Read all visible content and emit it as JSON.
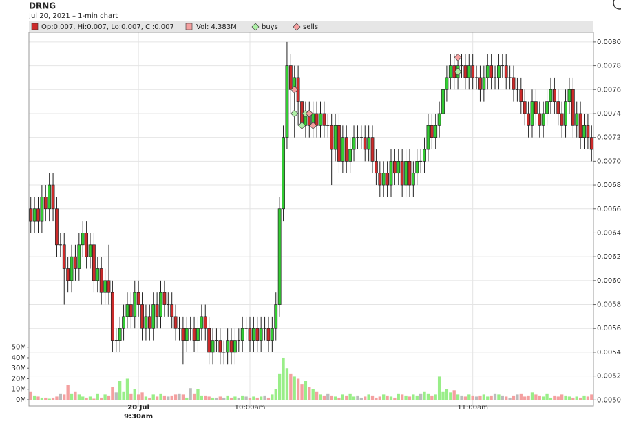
{
  "chart_data": {
    "type": "candlestick",
    "title": "DRNG",
    "subtitle": "Jul 20, 2021 – 1-min chart",
    "legend": {
      "ohlc": "Op:0.007, Hi:0.007, Lo:0.007, Cl:0.007",
      "volume": "Vol: 4.383M"
    },
    "up_color": "#33cc33",
    "down_color": "#cc2b2b",
    "volume_up_color": "#99ee88",
    "volume_down_color": "#f4a0a0",
    "volume_flat_color": "#bbbbbb",
    "date_label": "20 Jul",
    "categories": [
      null,
      null,
      null,
      null,
      null,
      null,
      null,
      null,
      null,
      null,
      null,
      null,
      null,
      null,
      null,
      null,
      null,
      null,
      null,
      null,
      null,
      null,
      null,
      null,
      null,
      null,
      null,
      null,
      null,
      "9:30am",
      null,
      null,
      null,
      null,
      null,
      null,
      null,
      null,
      null,
      null,
      null,
      null,
      null,
      null,
      null,
      null,
      null,
      null,
      null,
      null,
      null,
      null,
      null,
      null,
      null,
      null,
      null,
      null,
      null,
      "10:00am",
      null,
      null,
      null,
      null,
      null,
      null,
      null,
      null,
      null,
      null,
      null,
      null,
      null,
      null,
      null,
      null,
      null,
      null,
      null,
      null,
      null,
      null,
      null,
      null,
      null,
      null,
      null,
      null,
      null,
      null,
      null,
      null,
      null,
      null,
      null,
      null,
      null,
      null,
      null,
      null,
      null,
      null,
      null,
      null,
      null,
      null,
      null,
      null,
      null,
      null,
      null,
      null,
      null,
      null,
      null,
      null,
      null,
      null,
      null,
      "11:00am",
      null,
      null,
      null,
      null,
      null,
      null,
      null,
      null,
      null,
      null,
      null,
      null,
      null,
      null,
      null,
      null,
      null,
      null,
      null,
      null,
      null,
      null,
      null,
      null,
      null,
      null,
      null,
      null,
      null,
      null,
      null,
      null
    ],
    "open": [
      0.0066,
      0.0065,
      0.0066,
      0.0065,
      0.0067,
      0.0066,
      0.0068,
      0.0066,
      0.0063,
      0.0063,
      0.0061,
      0.006,
      0.0062,
      0.0061,
      0.0063,
      0.0064,
      0.0062,
      0.0063,
      0.006,
      0.0061,
      0.0059,
      0.006,
      0.0059,
      0.0055,
      0.0055,
      0.0056,
      0.0057,
      0.0058,
      0.0057,
      0.0059,
      0.0058,
      0.0056,
      0.0057,
      0.0056,
      0.0058,
      0.0057,
      0.0059,
      0.0058,
      0.0058,
      0.0057,
      0.0056,
      0.0056,
      0.0055,
      0.0056,
      0.0056,
      0.0055,
      0.0056,
      0.0057,
      0.0056,
      0.0054,
      0.0055,
      0.0055,
      0.0054,
      0.0054,
      0.0055,
      0.0054,
      0.0055,
      0.0055,
      0.0056,
      0.0056,
      0.0055,
      0.0056,
      0.0055,
      0.0056,
      0.0056,
      0.0055,
      0.0056,
      0.0058,
      0.0066,
      0.0072,
      0.0078,
      0.0076,
      0.0077,
      0.0075,
      0.0073,
      0.0074,
      0.0073,
      0.0074,
      0.0073,
      0.0074,
      0.0073,
      0.0073,
      0.0071,
      0.0073,
      0.007,
      0.0072,
      0.007,
      0.0071,
      0.0072,
      0.0072,
      0.0072,
      0.0071,
      0.0072,
      0.007,
      0.0069,
      0.0068,
      0.0069,
      0.0068,
      0.007,
      0.0069,
      0.007,
      0.0068,
      0.007,
      0.0068,
      0.0069,
      0.007,
      0.007,
      0.0071,
      0.0073,
      0.0072,
      0.0073,
      0.0074,
      0.0076,
      0.0077,
      0.0078,
      0.0077,
      0.0078,
      0.0078,
      0.0077,
      0.0078,
      0.0077,
      0.0077,
      0.0076,
      0.0077,
      0.0078,
      0.0077,
      0.0077,
      0.0078,
      0.0078,
      0.0077,
      0.0077,
      0.0076,
      0.0076,
      0.0075,
      0.0074,
      0.0073,
      0.0075,
      0.0074,
      0.0073,
      0.0074,
      0.0075,
      0.0076,
      0.0075,
      0.0074,
      0.0073,
      0.0075,
      0.0076,
      0.0073,
      0.0074,
      0.0072,
      0.0073,
      0.0072
    ],
    "high": [
      0.0067,
      0.0067,
      0.0067,
      0.0068,
      0.0068,
      0.0069,
      0.0069,
      0.0067,
      0.0064,
      0.0064,
      0.0062,
      0.0063,
      0.0063,
      0.0064,
      0.0065,
      0.0065,
      0.0064,
      0.0064,
      0.0062,
      0.0062,
      0.0061,
      0.0063,
      0.006,
      0.0056,
      0.0057,
      0.0058,
      0.0059,
      0.0059,
      0.006,
      0.006,
      0.0059,
      0.0058,
      0.0058,
      0.0059,
      0.0059,
      0.006,
      0.006,
      0.0059,
      0.0059,
      0.0058,
      0.0057,
      0.0057,
      0.0057,
      0.0057,
      0.0057,
      0.0057,
      0.0058,
      0.0058,
      0.0057,
      0.0056,
      0.0056,
      0.0056,
      0.0055,
      0.0056,
      0.0056,
      0.0056,
      0.0056,
      0.0057,
      0.0057,
      0.0057,
      0.0057,
      0.0057,
      0.0057,
      0.0057,
      0.0057,
      0.0057,
      0.0059,
      0.0067,
      0.0073,
      0.008,
      0.0079,
      0.0078,
      0.0078,
      0.0076,
      0.0075,
      0.0075,
      0.0075,
      0.0075,
      0.0075,
      0.0075,
      0.0074,
      0.0074,
      0.0074,
      0.0074,
      0.0073,
      0.0073,
      0.0072,
      0.0073,
      0.0073,
      0.0073,
      0.0073,
      0.0073,
      0.0073,
      0.0071,
      0.007,
      0.007,
      0.007,
      0.0071,
      0.0071,
      0.0071,
      0.0071,
      0.0071,
      0.0071,
      0.007,
      0.0071,
      0.0071,
      0.0072,
      0.0074,
      0.0074,
      0.0074,
      0.0075,
      0.0077,
      0.0078,
      0.0079,
      0.0079,
      0.0079,
      0.0079,
      0.0079,
      0.0079,
      0.0079,
      0.0078,
      0.0078,
      0.0078,
      0.0079,
      0.0079,
      0.0078,
      0.0079,
      0.0079,
      0.0079,
      0.0078,
      0.0078,
      0.0077,
      0.0077,
      0.0076,
      0.0075,
      0.0076,
      0.0076,
      0.0075,
      0.0075,
      0.0076,
      0.0077,
      0.0077,
      0.0076,
      0.0075,
      0.0076,
      0.0077,
      0.0077,
      0.0075,
      0.0075,
      0.0074,
      0.0074,
      0.0073
    ],
    "low": [
      0.0064,
      0.0064,
      0.0064,
      0.0064,
      0.0065,
      0.0065,
      0.0065,
      0.0062,
      0.0062,
      0.0058,
      0.0059,
      0.0059,
      0.006,
      0.006,
      0.0062,
      0.0061,
      0.0061,
      0.0059,
      0.0059,
      0.0058,
      0.0058,
      0.0058,
      0.0054,
      0.0054,
      0.0054,
      0.0055,
      0.0056,
      0.0056,
      0.0056,
      0.0057,
      0.0055,
      0.0055,
      0.0055,
      0.0055,
      0.0056,
      0.0056,
      0.0057,
      0.0057,
      0.0056,
      0.0055,
      0.0055,
      0.0053,
      0.0054,
      0.0055,
      0.0054,
      0.0054,
      0.0055,
      0.0055,
      0.0053,
      0.0053,
      0.0054,
      0.0053,
      0.0053,
      0.0053,
      0.0053,
      0.0053,
      0.0054,
      0.0054,
      0.0055,
      0.0054,
      0.0054,
      0.0054,
      0.0054,
      0.0055,
      0.0054,
      0.0054,
      0.0055,
      0.0057,
      0.0065,
      0.0071,
      0.0074,
      0.0072,
      0.0073,
      0.0071,
      0.0072,
      0.0072,
      0.0072,
      0.0072,
      0.0072,
      0.0072,
      0.0072,
      0.0068,
      0.007,
      0.0069,
      0.0069,
      0.0069,
      0.0069,
      0.007,
      0.0071,
      0.0071,
      0.007,
      0.007,
      0.0069,
      0.0068,
      0.0067,
      0.0067,
      0.0067,
      0.0067,
      0.0068,
      0.0068,
      0.0067,
      0.0067,
      0.0067,
      0.0067,
      0.0068,
      0.0069,
      0.0069,
      0.007,
      0.0071,
      0.0071,
      0.0072,
      0.0073,
      0.0075,
      0.0076,
      0.0076,
      0.0076,
      0.0077,
      0.0076,
      0.0076,
      0.0076,
      0.0076,
      0.0075,
      0.0075,
      0.0076,
      0.0076,
      0.0076,
      0.0076,
      0.0077,
      0.0076,
      0.0076,
      0.0075,
      0.0075,
      0.0074,
      0.0073,
      0.0072,
      0.0072,
      0.0073,
      0.0072,
      0.0072,
      0.0073,
      0.0074,
      0.0074,
      0.0073,
      0.0072,
      0.0072,
      0.0074,
      0.0072,
      0.0072,
      0.0071,
      0.0071,
      0.0071,
      0.007
    ],
    "close": [
      0.0065,
      0.0066,
      0.0065,
      0.0067,
      0.0066,
      0.0068,
      0.0066,
      0.0063,
      0.0063,
      0.0061,
      0.006,
      0.0062,
      0.0061,
      0.0063,
      0.0064,
      0.0062,
      0.0063,
      0.006,
      0.0061,
      0.0059,
      0.006,
      0.0059,
      0.0055,
      0.0055,
      0.0056,
      0.0057,
      0.0058,
      0.0057,
      0.0059,
      0.0058,
      0.0056,
      0.0057,
      0.0056,
      0.0058,
      0.0057,
      0.0059,
      0.0058,
      0.0058,
      0.0057,
      0.0056,
      0.0056,
      0.0055,
      0.0056,
      0.0056,
      0.0055,
      0.0056,
      0.0057,
      0.0056,
      0.0054,
      0.0055,
      0.0055,
      0.0054,
      0.0054,
      0.0055,
      0.0054,
      0.0055,
      0.0055,
      0.0056,
      0.0056,
      0.0055,
      0.0056,
      0.0055,
      0.0056,
      0.0056,
      0.0055,
      0.0056,
      0.0058,
      0.0066,
      0.0072,
      0.0078,
      0.0076,
      0.0077,
      0.0075,
      0.0073,
      0.0074,
      0.0073,
      0.0074,
      0.0073,
      0.0074,
      0.0073,
      0.0073,
      0.0071,
      0.0073,
      0.007,
      0.0072,
      0.007,
      0.0071,
      0.0072,
      0.0072,
      0.0072,
      0.0071,
      0.0072,
      0.007,
      0.0069,
      0.0068,
      0.0069,
      0.0068,
      0.007,
      0.0069,
      0.007,
      0.0068,
      0.007,
      0.0068,
      0.0069,
      0.007,
      0.007,
      0.0071,
      0.0073,
      0.0072,
      0.0073,
      0.0074,
      0.0076,
      0.0077,
      0.0078,
      0.0077,
      0.0078,
      0.0078,
      0.0077,
      0.0078,
      0.0077,
      0.0077,
      0.0076,
      0.0077,
      0.0078,
      0.0077,
      0.0077,
      0.0078,
      0.0078,
      0.0077,
      0.0077,
      0.0076,
      0.0076,
      0.0075,
      0.0074,
      0.0073,
      0.0075,
      0.0074,
      0.0073,
      0.0074,
      0.0075,
      0.0076,
      0.0075,
      0.0074,
      0.0073,
      0.0075,
      0.0076,
      0.0073,
      0.0074,
      0.0072,
      0.0073,
      0.0072,
      0.0071
    ],
    "volume": [
      8000000.0,
      4000000.0,
      3000000.0,
      2000000.0,
      2000000.0,
      1000000.0,
      2000000.0,
      3000000.0,
      6000000.0,
      5000000.0,
      14000000.0,
      6000000.0,
      8000000.0,
      5000000.0,
      3000000.0,
      2000000.0,
      3000000.0,
      1000000.0,
      6000000.0,
      2000000.0,
      5000000.0,
      4000000.0,
      12000000.0,
      7000000.0,
      18000000.0,
      8000000.0,
      20000000.0,
      6000000.0,
      10000000.0,
      5000000.0,
      7000000.0,
      3000000.0,
      2000000.0,
      5000000.0,
      3000000.0,
      6000000.0,
      4000000.0,
      3000000.0,
      4000000.0,
      5000000.0,
      6000000.0,
      5000000.0,
      2000000.0,
      11000000.0,
      6000000.0,
      10000000.0,
      4000000.0,
      4000000.0,
      3000000.0,
      2000000.0,
      2000000.0,
      3000000.0,
      2000000.0,
      4000000.0,
      2000000.0,
      3000000.0,
      2000000.0,
      4000000.0,
      3000000.0,
      2000000.0,
      3000000.0,
      2000000.0,
      3000000.0,
      4000000.0,
      2000000.0,
      5000000.0,
      10000000.0,
      25000000.0,
      40000000.0,
      30000000.0,
      25000000.0,
      22000000.0,
      20000000.0,
      15000000.0,
      18000000.0,
      12000000.0,
      10000000.0,
      8000000.0,
      5000000.0,
      4000000.0,
      6000000.0,
      4000000.0,
      3000000.0,
      2000000.0,
      5000000.0,
      4000000.0,
      6000000.0,
      3000000.0,
      4000000.0,
      2000000.0,
      3000000.0,
      5000000.0,
      4000000.0,
      2000000.0,
      3000000.0,
      5000000.0,
      4000000.0,
      3000000.0,
      2000000.0,
      6000000.0,
      5000000.0,
      4000000.0,
      3000000.0,
      5000000.0,
      4000000.0,
      6000000.0,
      8000000.0,
      6000000.0,
      4000000.0,
      5000000.0,
      22000000.0,
      8000000.0,
      10000000.0,
      7000000.0,
      9000000.0,
      5000000.0,
      4000000.0,
      3000000.0,
      5000000.0,
      4000000.0,
      3000000.0,
      4000000.0,
      5000000.0,
      3000000.0,
      4000000.0,
      6000000.0,
      5000000.0,
      4000000.0,
      3000000.0,
      2000000.0,
      4000000.0,
      5000000.0,
      6000000.0,
      3000000.0,
      4000000.0,
      7000000.0,
      5000000.0,
      4000000.0,
      3000000.0,
      6000000.0,
      2000000.0,
      4000000.0,
      3000000.0,
      5000000.0,
      4000000.0,
      3000000.0,
      2000000.0,
      3000000.0,
      2000000.0,
      4000000.0,
      3000000.0,
      5000000.0
    ],
    "markers": [
      {
        "name": "buys",
        "color": "#aef0a6",
        "x": [
          71,
          73,
          74,
          115
        ],
        "values": [
          0.0074,
          0.0073,
          0.0074,
          0.00775
        ]
      },
      {
        "name": "sells",
        "color": "#f4a0a0",
        "x": [
          71,
          75,
          76,
          115
        ],
        "values": [
          0.0076,
          0.0074,
          0.0073,
          0.00787
        ]
      }
    ],
    "ylim": [
      0.00495,
      0.00808
    ],
    "yticks": [
      {
        "value": 0.005,
        "label": "0.0050"
      },
      {
        "value": 0.0052,
        "label": "0.0052"
      },
      {
        "value": 0.0054,
        "label": "0.0054"
      },
      {
        "value": 0.0056,
        "label": "0.0056"
      },
      {
        "value": 0.0058,
        "label": "0.0058"
      },
      {
        "value": 0.006,
        "label": "0.0060"
      },
      {
        "value": 0.0062,
        "label": "0.0062"
      },
      {
        "value": 0.0064,
        "label": "0.0064"
      },
      {
        "value": 0.0066,
        "label": "0.0066"
      },
      {
        "value": 0.0068,
        "label": "0.0068"
      },
      {
        "value": 0.007,
        "label": "0.0070"
      },
      {
        "value": 0.0072,
        "label": "0.0072"
      },
      {
        "value": 0.0074,
        "label": "0.0074"
      },
      {
        "value": 0.0076,
        "label": "0.0076"
      },
      {
        "value": 0.0078,
        "label": "0.0078"
      },
      {
        "value": 0.008,
        "label": "0.0080"
      }
    ],
    "vlim": [
      0,
      350000000
    ],
    "vticks": [
      {
        "value": 0,
        "label": "0M"
      },
      {
        "value": 10000000,
        "label": "10M"
      },
      {
        "value": 20000000,
        "label": "20M"
      },
      {
        "value": 30000000,
        "label": "30M"
      },
      {
        "value": 40000000,
        "label": "40M"
      },
      {
        "value": 50000000,
        "label": "50M"
      }
    ],
    "grid": true
  }
}
